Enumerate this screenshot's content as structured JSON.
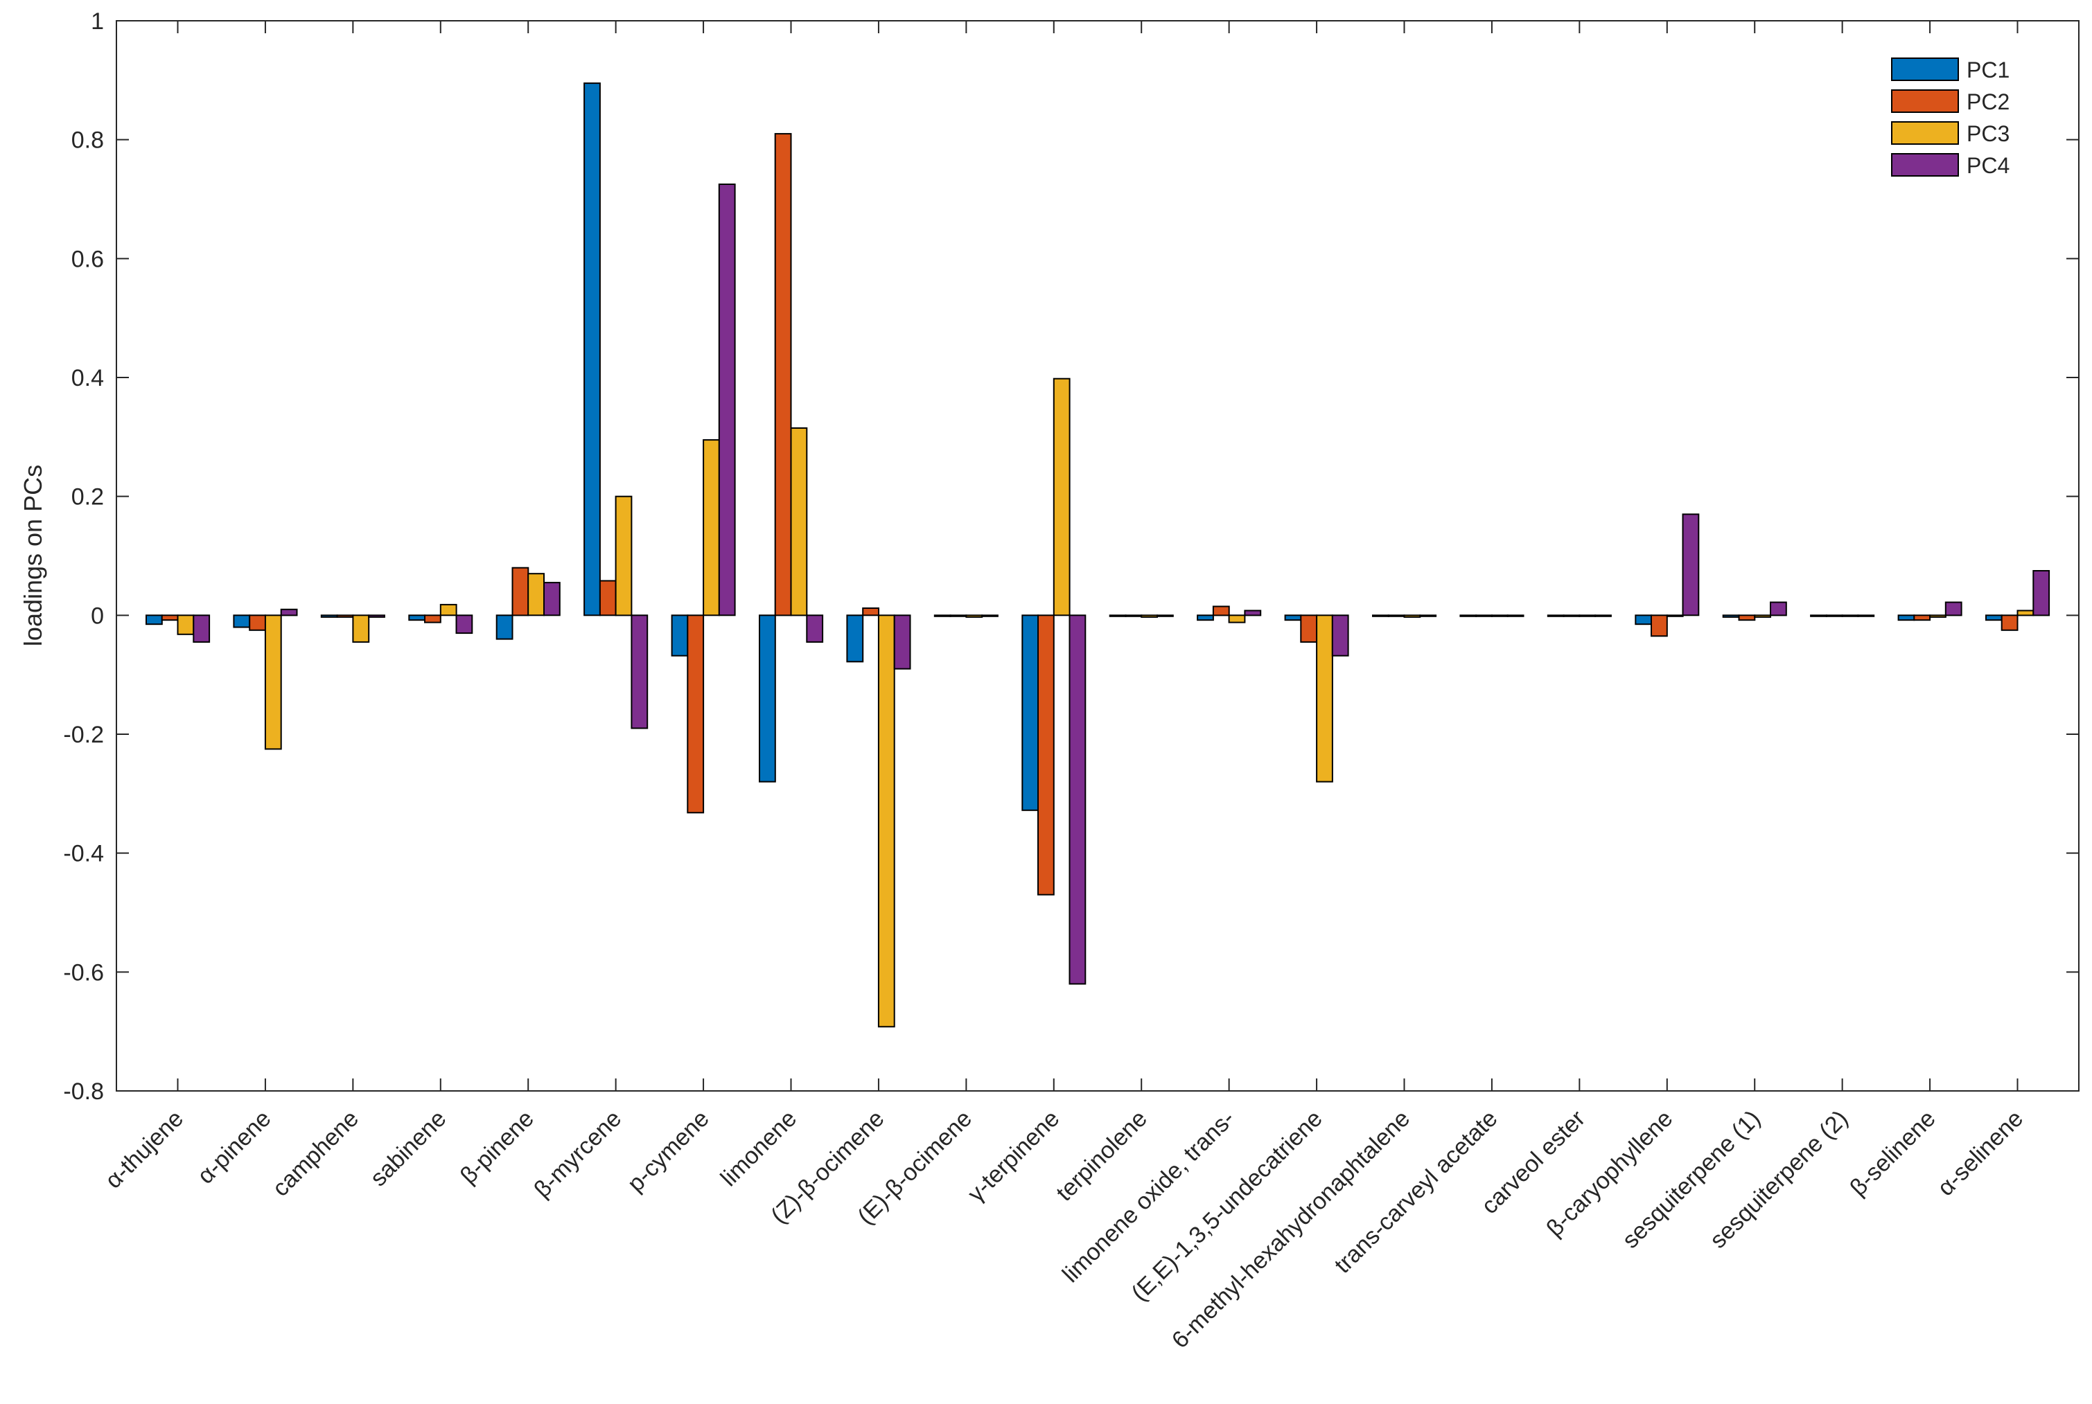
{
  "chart_data": {
    "type": "bar",
    "ylabel": "loadings on PCs",
    "xlabel": "",
    "ylim": [
      -0.8,
      1
    ],
    "yticks": [
      -0.8,
      -0.6,
      -0.4,
      -0.2,
      0,
      0.2,
      0.4,
      0.6,
      0.8,
      1
    ],
    "ytick_labels": [
      "-0.8",
      "-0.6",
      "-0.4",
      "-0.2",
      "0",
      "0.2",
      "0.4",
      "0.6",
      "0.8",
      "1"
    ],
    "grid": false,
    "legend_position": "top-right",
    "categories": [
      "α-thujene",
      "α-pinene",
      "camphene",
      "sabinene",
      "β-pinene",
      "β-myrcene",
      "p-cymene",
      "limonene",
      "(Z)-β-ocimene",
      "(E)-β-ocimene",
      "γ-terpinene",
      "terpinolene",
      "limonene oxide, trans-",
      "(E,E)-1,3,5-undecatriene",
      "6-methyl-hexahydronaphtalene",
      "trans-carveyl acetate",
      "carveol ester",
      "β-caryophyllene",
      "sesquiterpene (1)",
      "sesquiterpene (2)",
      "β-selinene",
      "α-selinene"
    ],
    "series": [
      {
        "name": "PC1",
        "color": "#0072BD",
        "values": [
          -0.015,
          -0.02,
          -0.003,
          -0.008,
          -0.04,
          0.895,
          -0.068,
          -0.28,
          -0.078,
          0.0,
          -0.328,
          0.0,
          -0.008,
          -0.008,
          0.0,
          0.0,
          0.0,
          -0.015,
          -0.003,
          0.0,
          -0.008,
          -0.008
        ]
      },
      {
        "name": "PC2",
        "color": "#D95319",
        "values": [
          -0.008,
          -0.025,
          -0.003,
          -0.012,
          0.08,
          0.058,
          -0.332,
          0.81,
          0.012,
          0.0,
          -0.47,
          0.0,
          0.015,
          -0.045,
          0.0,
          0.0,
          0.0,
          -0.035,
          -0.008,
          0.0,
          -0.008,
          -0.025
        ]
      },
      {
        "name": "PC3",
        "color": "#EDB120",
        "values": [
          -0.032,
          -0.225,
          -0.045,
          0.018,
          0.07,
          0.2,
          0.295,
          0.315,
          -0.692,
          -0.003,
          0.398,
          -0.003,
          -0.012,
          -0.28,
          -0.003,
          0.0,
          0.0,
          0.0,
          -0.003,
          0.0,
          -0.003,
          0.008
        ]
      },
      {
        "name": "PC4",
        "color": "#7E2F8E",
        "values": [
          -0.045,
          0.01,
          -0.003,
          -0.03,
          0.055,
          -0.19,
          0.725,
          -0.045,
          -0.09,
          0.0,
          -0.62,
          0.0,
          0.008,
          -0.068,
          0.0,
          0.0,
          0.0,
          0.17,
          0.022,
          0.0,
          0.022,
          0.075
        ]
      }
    ]
  }
}
